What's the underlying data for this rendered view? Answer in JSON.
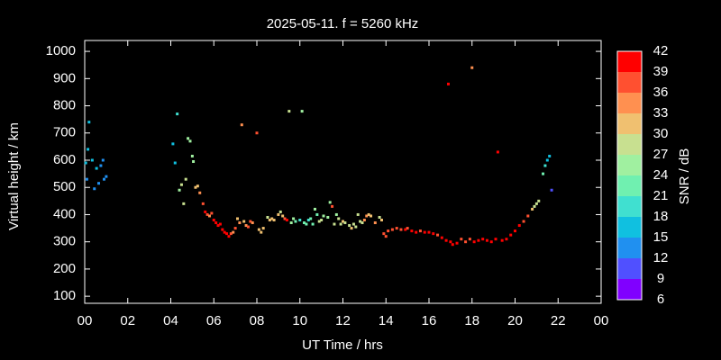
{
  "chart_data": {
    "type": "scatter",
    "title": "2025-05-11. f = 5260 kHz",
    "x_label": "UT Time / hrs",
    "y_label": "Virtual height / km",
    "xlim": [
      0,
      24
    ],
    "xticks": [
      {
        "value": 0,
        "label": "00"
      },
      {
        "value": 2,
        "label": "02"
      },
      {
        "value": 4,
        "label": "04"
      },
      {
        "value": 6,
        "label": "06"
      },
      {
        "value": 8,
        "label": "08"
      },
      10,
      12,
      14,
      16,
      18,
      20,
      22,
      {
        "value": 24,
        "label": "00"
      }
    ],
    "ylim": [
      74,
      1040
    ],
    "yticks": [
      100,
      200,
      300,
      400,
      500,
      600,
      700,
      800,
      900,
      1000
    ],
    "colorbar": {
      "label": "SNR / dB",
      "lim": [
        6,
        42
      ],
      "ticks": [
        6,
        9,
        12,
        15,
        18,
        21,
        24,
        27,
        30,
        33,
        36,
        39,
        42
      ],
      "colors": [
        "#8000ff",
        "#5050ff",
        "#2090f0",
        "#10c0e0",
        "#40e0d0",
        "#70f0b0",
        "#a0f0a0",
        "#c8e090",
        "#f0c070",
        "#ff9050",
        "#ff5030",
        "#ff0000"
      ]
    },
    "x": [
      0.05,
      0.1,
      0.15,
      0.2,
      0.35,
      0.45,
      0.55,
      0.65,
      0.75,
      0.85,
      0.9,
      1.0,
      4.1,
      4.2,
      4.3,
      4.4,
      4.5,
      4.6,
      4.7,
      4.8,
      4.9,
      5.0,
      5.05,
      5.15,
      5.25,
      5.35,
      5.5,
      5.6,
      5.7,
      5.8,
      5.9,
      6.0,
      6.1,
      6.2,
      6.3,
      6.4,
      6.5,
      6.6,
      6.7,
      6.8,
      6.9,
      7.0,
      7.1,
      7.2,
      7.3,
      7.4,
      7.5,
      7.6,
      7.7,
      7.8,
      8.0,
      8.1,
      8.2,
      8.3,
      8.5,
      8.6,
      8.7,
      8.8,
      9.0,
      9.1,
      9.2,
      9.3,
      9.4,
      9.5,
      9.6,
      9.7,
      9.8,
      10.0,
      10.1,
      10.2,
      10.3,
      10.4,
      10.5,
      10.6,
      10.7,
      10.8,
      10.9,
      11.0,
      11.1,
      11.3,
      11.4,
      11.5,
      11.6,
      11.7,
      11.8,
      11.9,
      12.0,
      12.1,
      12.3,
      12.4,
      12.5,
      12.6,
      12.7,
      12.8,
      12.9,
      13.0,
      13.1,
      13.2,
      13.3,
      13.5,
      13.7,
      13.8,
      13.9,
      14.0,
      14.1,
      14.3,
      14.5,
      14.7,
      14.9,
      15.0,
      15.2,
      15.4,
      15.6,
      15.8,
      16.0,
      16.2,
      16.4,
      16.6,
      16.8,
      16.9,
      17.0,
      17.1,
      17.3,
      17.5,
      17.7,
      17.9,
      18.0,
      18.1,
      18.3,
      18.5,
      18.7,
      18.9,
      19.1,
      19.2,
      19.4,
      19.6,
      19.8,
      20.0,
      20.2,
      20.4,
      20.6,
      20.8,
      20.9,
      21.0,
      21.1,
      21.3,
      21.4,
      21.5,
      21.6,
      21.7
    ],
    "values": [
      590,
      530,
      640,
      740,
      600,
      495,
      570,
      515,
      580,
      600,
      530,
      540,
      660,
      590,
      770,
      490,
      510,
      440,
      530,
      680,
      670,
      615,
      595,
      500,
      505,
      480,
      440,
      410,
      400,
      395,
      405,
      380,
      370,
      360,
      365,
      345,
      335,
      330,
      320,
      330,
      335,
      350,
      385,
      370,
      730,
      375,
      360,
      355,
      375,
      370,
      700,
      345,
      335,
      350,
      390,
      380,
      385,
      380,
      400,
      410,
      395,
      385,
      380,
      780,
      370,
      385,
      375,
      380,
      780,
      370,
      365,
      380,
      385,
      365,
      420,
      400,
      375,
      380,
      395,
      390,
      445,
      430,
      365,
      400,
      385,
      365,
      375,
      370,
      360,
      350,
      365,
      355,
      400,
      375,
      370,
      380,
      395,
      400,
      395,
      370,
      390,
      380,
      330,
      320,
      340,
      345,
      350,
      345,
      345,
      350,
      340,
      335,
      340,
      335,
      335,
      330,
      325,
      315,
      305,
      880,
      300,
      290,
      295,
      310,
      300,
      310,
      940,
      300,
      305,
      310,
      305,
      300,
      310,
      630,
      305,
      310,
      325,
      340,
      360,
      375,
      395,
      420,
      430,
      440,
      450,
      550,
      580,
      600,
      615,
      490
    ],
    "snr": [
      15,
      12,
      15,
      15,
      15,
      12,
      15,
      12,
      12,
      12,
      12,
      12,
      15,
      15,
      18,
      24,
      27,
      27,
      27,
      24,
      24,
      24,
      24,
      30,
      30,
      33,
      36,
      39,
      36,
      33,
      36,
      39,
      39,
      39,
      39,
      39,
      39,
      39,
      39,
      36,
      33,
      36,
      30,
      33,
      33,
      30,
      33,
      36,
      36,
      33,
      36,
      30,
      30,
      30,
      27,
      30,
      30,
      30,
      30,
      27,
      30,
      36,
      39,
      27,
      24,
      24,
      21,
      18,
      24,
      21,
      21,
      18,
      21,
      21,
      24,
      21,
      27,
      27,
      24,
      24,
      24,
      36,
      27,
      24,
      27,
      27,
      30,
      27,
      27,
      30,
      27,
      27,
      27,
      27,
      27,
      33,
      33,
      30,
      30,
      33,
      27,
      30,
      36,
      36,
      36,
      36,
      36,
      36,
      39,
      36,
      39,
      39,
      36,
      39,
      39,
      39,
      36,
      39,
      39,
      39,
      39,
      39,
      39,
      36,
      36,
      36,
      33,
      39,
      39,
      39,
      39,
      39,
      39,
      39,
      39,
      39,
      39,
      39,
      39,
      36,
      36,
      30,
      27,
      27,
      27,
      21,
      18,
      15,
      15,
      9
    ]
  }
}
